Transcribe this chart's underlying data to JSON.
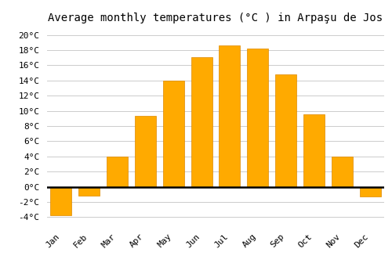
{
  "title": "Average monthly temperatures (°C ) in Arpaşu de Jos",
  "months": [
    "Jan",
    "Feb",
    "Mar",
    "Apr",
    "May",
    "Jun",
    "Jul",
    "Aug",
    "Sep",
    "Oct",
    "Nov",
    "Dec"
  ],
  "values": [
    -3.8,
    -1.2,
    4.0,
    9.3,
    14.0,
    17.1,
    18.6,
    18.2,
    14.8,
    9.5,
    4.0,
    -1.3
  ],
  "bar_color": "#FFAA00",
  "bar_edge_color": "#DD8800",
  "ylim": [
    -5,
    21
  ],
  "yticks": [
    -4,
    -2,
    0,
    2,
    4,
    6,
    8,
    10,
    12,
    14,
    16,
    18,
    20
  ],
  "background_color": "#FFFFFF",
  "grid_color": "#CCCCCC",
  "title_fontsize": 10,
  "tick_fontsize": 8,
  "font_family": "monospace"
}
